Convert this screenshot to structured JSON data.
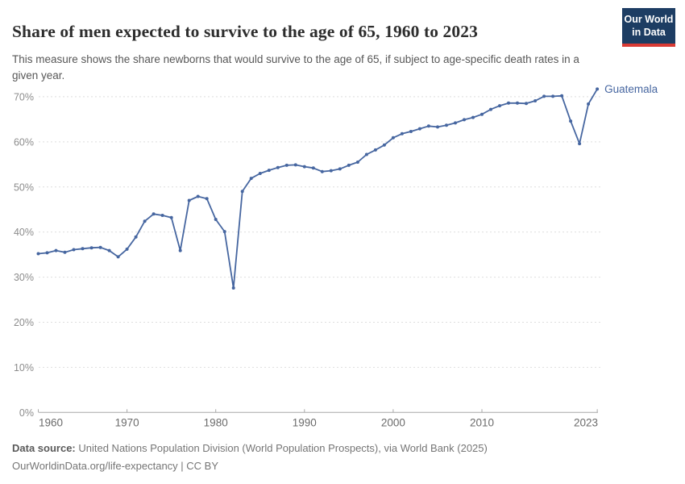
{
  "header": {
    "title": "Share of men expected to survive to the age of 65, 1960 to 2023",
    "subtitle": "This measure shows the share newborns that would survive to the age of 65, if subject to age-specific death rates in a given year.",
    "logo": {
      "line1": "Our World",
      "line2": "in Data",
      "bg_color": "#1d3d63",
      "accent_color": "#d93a34"
    }
  },
  "chart_data": {
    "type": "line",
    "title": "Share of men expected to survive to the age of 65, 1960 to 2023",
    "entity_label": "Guatemala",
    "unit": "%",
    "xlim": [
      1960,
      2023
    ],
    "ylim": [
      0,
      72.5
    ],
    "grid": "horizontal-dashed",
    "legend_position": "end-of-line-label",
    "x_ticks": [
      1960,
      1970,
      1980,
      1990,
      2000,
      2010,
      2023
    ],
    "y_ticks": [
      0,
      10,
      20,
      30,
      40,
      50,
      60,
      70
    ],
    "y_tick_suffix": "%",
    "x": [
      1960,
      1961,
      1962,
      1963,
      1964,
      1965,
      1966,
      1967,
      1968,
      1969,
      1970,
      1971,
      1972,
      1973,
      1974,
      1975,
      1976,
      1977,
      1978,
      1979,
      1980,
      1981,
      1982,
      1983,
      1984,
      1985,
      1986,
      1987,
      1988,
      1989,
      1990,
      1991,
      1992,
      1993,
      1994,
      1995,
      1996,
      1997,
      1998,
      1999,
      2000,
      2001,
      2002,
      2003,
      2004,
      2005,
      2006,
      2007,
      2008,
      2009,
      2010,
      2011,
      2012,
      2013,
      2014,
      2015,
      2016,
      2017,
      2018,
      2019,
      2020,
      2021,
      2022,
      2023
    ],
    "series": [
      {
        "name": "Guatemala",
        "color": "#4666a0",
        "values": [
          35.2,
          35.4,
          35.9,
          35.5,
          36.1,
          36.3,
          36.5,
          36.6,
          35.9,
          34.5,
          36.2,
          38.9,
          42.4,
          44.0,
          43.7,
          43.2,
          35.9,
          47.0,
          47.9,
          47.4,
          42.8,
          40.1,
          27.6,
          49.0,
          51.9,
          53.0,
          53.7,
          54.3,
          54.8,
          54.9,
          54.5,
          54.2,
          53.4,
          53.6,
          54.0,
          54.8,
          55.5,
          57.2,
          58.2,
          59.3,
          60.9,
          61.8,
          62.3,
          62.9,
          63.5,
          63.3,
          63.7,
          64.2,
          64.9,
          65.4,
          66.1,
          67.2,
          68.0,
          68.6,
          68.6,
          68.5,
          69.1,
          70.1,
          70.1,
          70.2,
          64.6,
          59.6,
          68.4,
          71.7
        ]
      }
    ],
    "axis_colors": {
      "gridline": "#dedede",
      "axis_line": "#a8a8a8",
      "y_label": "#8c8c8c",
      "x_label": "#6b6b6b"
    }
  },
  "footer": {
    "source_label": "Data source:",
    "source_text": " United Nations Population Division (World Population Prospects), via World Bank (2025)",
    "citation": "OurWorldinData.org/life-expectancy | CC BY"
  }
}
